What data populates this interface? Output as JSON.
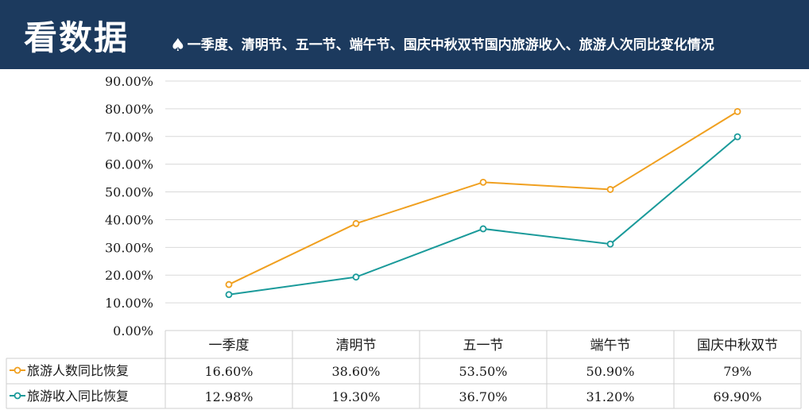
{
  "header": {
    "title": "看数据",
    "icon": "spade-icon",
    "subtitle": "一季度、清明节、五一节、端午节、国庆中秋双节国内旅游收入、旅游人次同比变化情况"
  },
  "chart_data": {
    "type": "line",
    "categories": [
      "一季度",
      "清明节",
      "五一节",
      "端午节",
      "国庆中秋双节"
    ],
    "series": [
      {
        "name": "旅游人数同比恢复",
        "values": [
          16.6,
          38.6,
          53.5,
          50.9,
          79
        ],
        "labels": [
          "16.60%",
          "38.60%",
          "53.50%",
          "50.90%",
          "79%"
        ],
        "color": "#f0a020"
      },
      {
        "name": "旅游收入同比恢复",
        "values": [
          12.98,
          19.3,
          36.7,
          31.2,
          69.9
        ],
        "labels": [
          "12.98%",
          "19.30%",
          "36.70%",
          "31.20%",
          "69.90%"
        ],
        "color": "#1a9a9a"
      }
    ],
    "y_ticks": [
      "0.00%",
      "10.00%",
      "20.00%",
      "30.00%",
      "40.00%",
      "50.00%",
      "60.00%",
      "70.00%",
      "80.00%",
      "90.00%"
    ],
    "ylim": [
      0,
      90
    ],
    "grid": true,
    "data_table": true
  }
}
